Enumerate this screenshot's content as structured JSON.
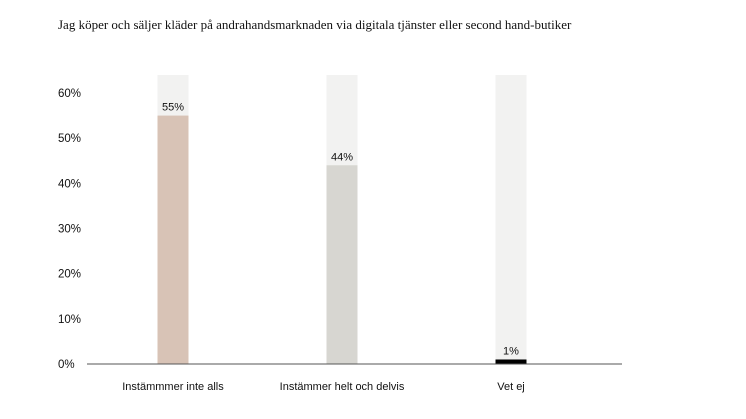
{
  "chart_data": {
    "type": "bar",
    "title": "Jag köper och säljer kläder på andrahandsmarknaden via digitala tjänster eller second hand-butiker",
    "categories": [
      "Instämmmer inte alls",
      "Instämmer helt och delvis",
      "Vet ej"
    ],
    "values": [
      55,
      44,
      1
    ],
    "value_labels": [
      "55%",
      "44%",
      "1%"
    ],
    "bar_colors": [
      "#d8c3b6",
      "#d7d6d1",
      "#000000"
    ],
    "track_color": "#f2f2f1",
    "ylim": [
      0,
      65
    ],
    "yticks": [
      0,
      10,
      20,
      30,
      40,
      50,
      60
    ],
    "ytick_labels": [
      "0%",
      "10%",
      "20%",
      "30%",
      "40%",
      "50%",
      "60%"
    ],
    "grid": false,
    "legend": "none"
  }
}
